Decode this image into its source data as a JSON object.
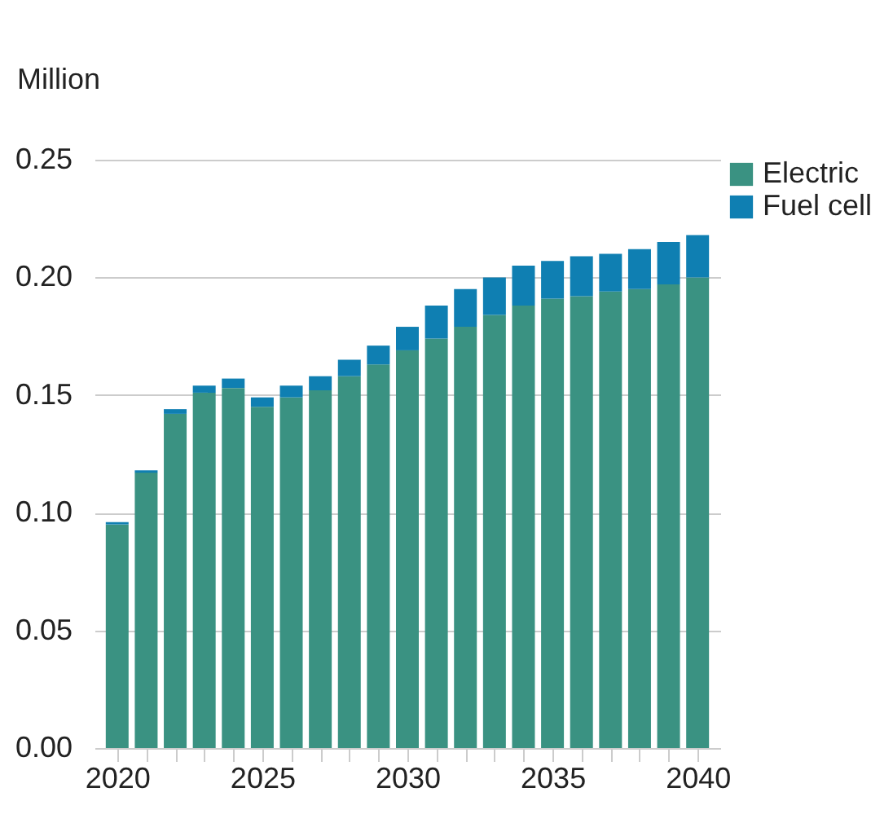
{
  "chart_data": {
    "type": "bar",
    "stacked": true,
    "ylabel": "Million",
    "x": [
      2020,
      2021,
      2022,
      2023,
      2024,
      2025,
      2026,
      2027,
      2028,
      2029,
      2030,
      2031,
      2032,
      2033,
      2034,
      2035,
      2036,
      2037,
      2038,
      2039,
      2040
    ],
    "series": [
      {
        "name": "Electric",
        "color": "#3a9282",
        "values": [
          0.095,
          0.117,
          0.142,
          0.151,
          0.153,
          0.145,
          0.149,
          0.152,
          0.158,
          0.163,
          0.169,
          0.174,
          0.179,
          0.184,
          0.188,
          0.191,
          0.192,
          0.194,
          0.195,
          0.197,
          0.2
        ]
      },
      {
        "name": "Fuel cell",
        "color": "#0f7fb2",
        "values": [
          0.001,
          0.001,
          0.002,
          0.003,
          0.004,
          0.004,
          0.005,
          0.006,
          0.007,
          0.008,
          0.01,
          0.014,
          0.016,
          0.016,
          0.017,
          0.016,
          0.017,
          0.016,
          0.017,
          0.018,
          0.018
        ]
      }
    ],
    "xlim": [
      2019.5,
      2040.5
    ],
    "xticks": [
      2020,
      {
        "value": 2021,
        "label": null
      },
      {
        "value": 2022,
        "label": null
      },
      {
        "value": 2023,
        "label": null
      },
      {
        "value": 2024,
        "label": null
      },
      2025,
      {
        "value": 2026,
        "label": null
      },
      {
        "value": 2027,
        "label": null
      },
      {
        "value": 2028,
        "label": null
      },
      {
        "value": 2029,
        "label": null
      },
      2030,
      {
        "value": 2031,
        "label": null
      },
      {
        "value": 2032,
        "label": null
      },
      {
        "value": 2033,
        "label": null
      },
      {
        "value": 2034,
        "label": null
      },
      2035,
      {
        "value": 2036,
        "label": null
      },
      {
        "value": 2037,
        "label": null
      },
      {
        "value": 2038,
        "label": null
      },
      {
        "value": 2039,
        "label": null
      },
      2040
    ],
    "ylim": [
      0,
      0.25
    ],
    "yticks": [
      {
        "value": 0,
        "label": "0.00"
      },
      {
        "value": 0.05,
        "label": "0.05"
      },
      {
        "value": 0.1,
        "label": "0.10"
      },
      {
        "value": 0.15,
        "label": "0.15"
      },
      {
        "value": 0.2,
        "label": "0.20"
      },
      {
        "value": 0.25,
        "label": "0.25"
      }
    ],
    "grid": "y",
    "legend": "right"
  }
}
